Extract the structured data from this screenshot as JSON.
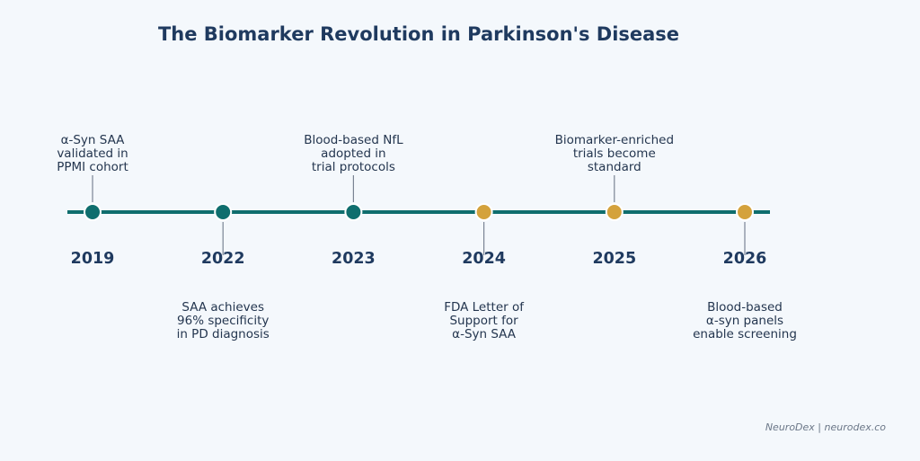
{
  "title": "The Biomarker Revolution in Parkinson's Disease",
  "credit": "NeuroDex | neurodex.co",
  "colors": {
    "line": "#0f6e6e",
    "past": "#0f6e6e",
    "future": "#d4a23c",
    "connector": "#7a8494",
    "text": "#24364f",
    "title": "#1f3a5f"
  },
  "milestones": [
    {
      "year": "2019",
      "status": "past",
      "side": "above",
      "lines": [
        "α-Syn SAA",
        "validated in",
        "PPMI cohort"
      ]
    },
    {
      "year": "2022",
      "status": "past",
      "side": "below",
      "lines": [
        "SAA achieves",
        "96% specificity",
        "in PD diagnosis"
      ]
    },
    {
      "year": "2023",
      "status": "past",
      "side": "above",
      "lines": [
        "Blood-based NfL",
        "adopted in",
        "trial protocols"
      ]
    },
    {
      "year": "2024",
      "status": "future",
      "side": "below",
      "lines": [
        "FDA Letter of",
        "Support for",
        "α-Syn SAA"
      ]
    },
    {
      "year": "2025",
      "status": "future",
      "side": "above",
      "lines": [
        "Biomarker-enriched",
        "trials become",
        "standard"
      ]
    },
    {
      "year": "2026",
      "status": "future",
      "side": "below",
      "lines": [
        "Blood-based",
        "α-syn panels",
        "enable screening"
      ]
    }
  ]
}
